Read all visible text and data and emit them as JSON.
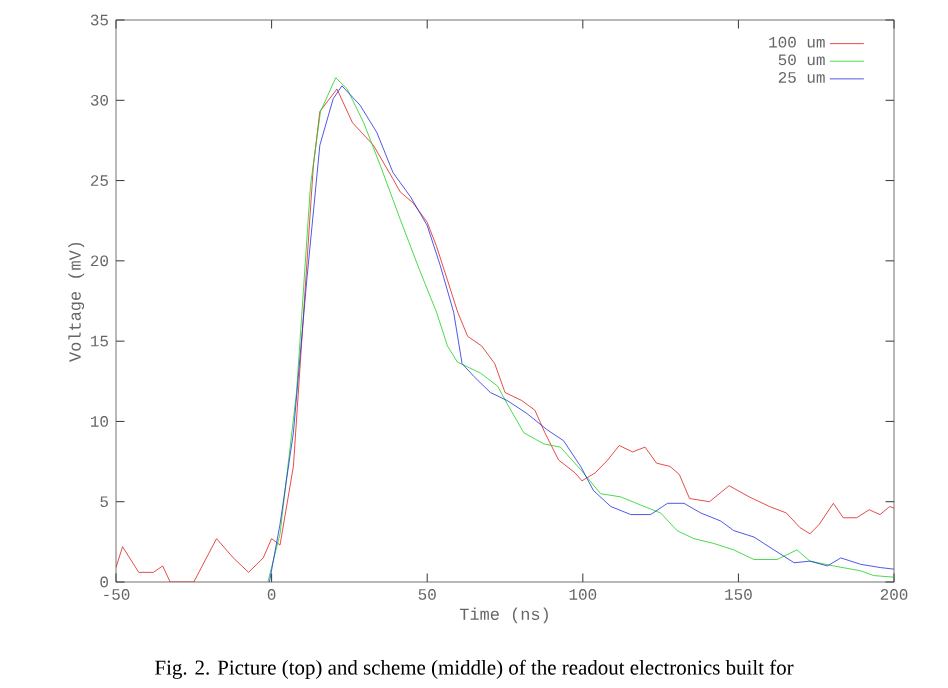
{
  "chart_data": {
    "type": "line",
    "xlabel": "Time (ns)",
    "ylabel": "Voltage (mV)",
    "xlim": [
      -50,
      200
    ],
    "ylim": [
      0,
      35
    ],
    "xticks": [
      -50,
      0,
      50,
      100,
      150,
      200
    ],
    "yticks": [
      0,
      5,
      10,
      15,
      20,
      25,
      30,
      35
    ],
    "legend": "top right",
    "line_style": "solid",
    "annotations": [
      "Fig. 2. Picture (top) and scheme (middle) of the readout electronics built for"
    ],
    "series": [
      {
        "name": "100 um",
        "color": "#e02020",
        "x": [
          -50,
          -47.9,
          -42.7,
          -38,
          -35,
          -32.6,
          -25,
          -17.7,
          -12.3,
          -7.4,
          -2.7,
          0,
          2.7,
          7,
          9,
          13.4,
          15.5,
          21,
          26,
          32.7,
          39,
          41.3,
          45.5,
          50,
          53,
          56.5,
          59.8,
          63,
          67.5,
          71.7,
          75,
          80.4,
          84.6,
          87.8,
          92.2,
          97.5,
          99.7,
          104,
          108,
          111.7,
          116,
          120,
          123.7,
          128,
          131,
          134.3,
          140.7,
          147,
          153.5,
          160,
          165.4,
          169.7,
          173,
          176,
          180.5,
          183.7,
          188,
          192,
          195.5,
          198.6,
          200
        ],
        "values": [
          0.9,
          2.2,
          0.6,
          0.6,
          1.0,
          0,
          0,
          2.7,
          1.5,
          0.6,
          1.5,
          2.7,
          2.3,
          7.2,
          13,
          25.9,
          29.3,
          30.7,
          28.6,
          27.2,
          25.1,
          24.3,
          23.6,
          22.4,
          20.9,
          18.8,
          16.8,
          15.3,
          14.7,
          13.6,
          11.8,
          11.3,
          10.7,
          9.3,
          7.6,
          6.8,
          6.3,
          6.8,
          7.6,
          8.5,
          8.1,
          8.4,
          7.4,
          7.2,
          6.7,
          5.2,
          5.0,
          6.0,
          5.3,
          4.7,
          4.3,
          3.4,
          3.0,
          3.6,
          4.9,
          4.0,
          4.0,
          4.5,
          4.2,
          4.7,
          4.6
        ]
      },
      {
        "name": "50 um",
        "color": "#20d020",
        "x": [
          -1.2,
          2.7,
          8,
          12.5,
          15.7,
          20.6,
          24.3,
          29.6,
          35,
          41.3,
          47.8,
          53,
          56.5,
          59.7,
          67.2,
          72.6,
          75.7,
          81,
          87.5,
          92.8,
          99.3,
          105.7,
          112.2,
          118.5,
          125,
          130.3,
          135.7,
          142.1,
          148.5,
          155,
          162.4,
          168.8,
          173,
          180.6,
          189.2,
          193.5,
          200
        ],
        "values": [
          0,
          3,
          11.8,
          24.7,
          29.3,
          31.4,
          30.7,
          28.6,
          25.9,
          22.6,
          19.3,
          16.8,
          14.7,
          13.7,
          13,
          12.2,
          11.1,
          9.3,
          8.6,
          8.4,
          7,
          5.5,
          5.3,
          4.8,
          4.3,
          3.2,
          2.7,
          2.4,
          2.0,
          1.4,
          1.4,
          2.0,
          1.3,
          1.0,
          0.7,
          0.4,
          0.3
        ]
      },
      {
        "name": "25 um",
        "color": "#2030e0",
        "x": [
          -0.7,
          2.7,
          7,
          11.3,
          15.5,
          19.8,
          22.6,
          28.4,
          33.8,
          39,
          44.6,
          50,
          54.2,
          58.5,
          61.2,
          65,
          70.3,
          75.7,
          82,
          88.4,
          93.8,
          99.3,
          103.4,
          109,
          115.4,
          121.8,
          127.2,
          132.5,
          137.9,
          144.3,
          148.5,
          155,
          161.4,
          167.9,
          173,
          178.6,
          182.9,
          189.3,
          195.6,
          200
        ],
        "values": [
          0,
          3.6,
          9.3,
          18.8,
          27.2,
          30.1,
          30.9,
          29.7,
          28,
          25.5,
          24,
          22.2,
          19.7,
          16.8,
          13.6,
          12.8,
          11.8,
          11.3,
          10.5,
          9.5,
          8.8,
          7.2,
          5.7,
          4.7,
          4.2,
          4.2,
          4.9,
          4.9,
          4.3,
          3.8,
          3.2,
          2.8,
          2.0,
          1.2,
          1.3,
          1.0,
          1.5,
          1.1,
          0.9,
          0.8
        ]
      }
    ]
  }
}
